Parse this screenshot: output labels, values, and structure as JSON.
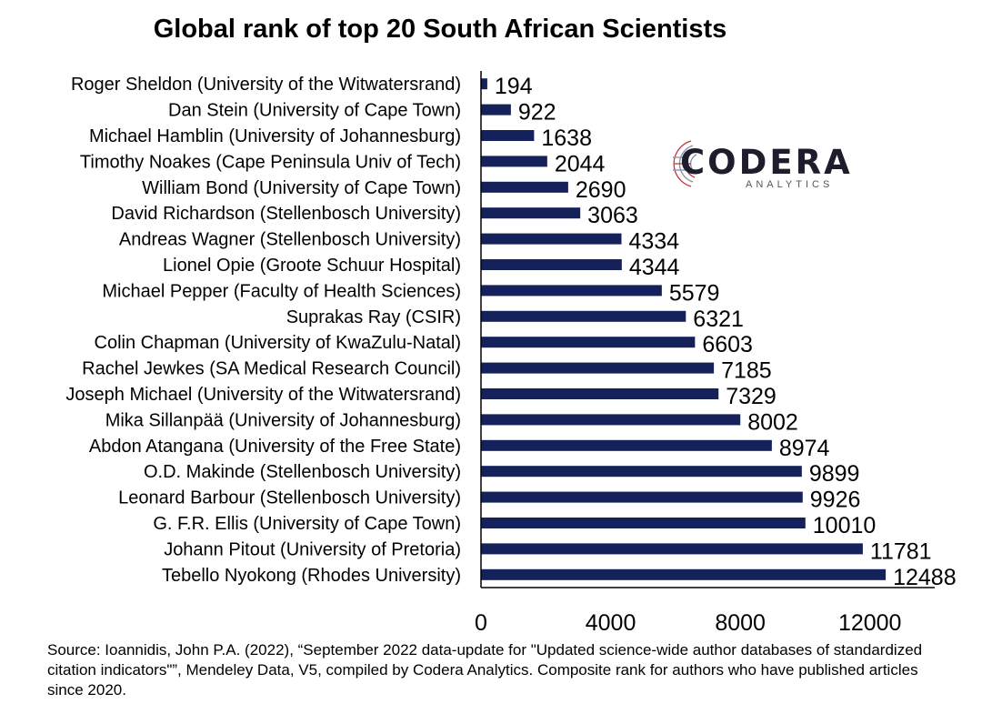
{
  "chart_data": {
    "type": "bar",
    "orientation": "horizontal",
    "title": "Global rank of top 20 South African Scientists",
    "categories": [
      "Roger Sheldon (University of the Witwatersrand)",
      "Dan Stein (University of Cape Town)",
      "Michael Hamblin (University of Johannesburg)",
      "Timothy Noakes (Cape Peninsula Univ of Tech)",
      "William Bond (University of Cape Town)",
      "David Richardson (Stellenbosch University)",
      "Andreas Wagner (Stellenbosch University)",
      "Lionel Opie (Groote Schuur Hospital)",
      "Michael Pepper (Faculty of Health Sciences)",
      "Suprakas Ray (CSIR)",
      "Colin Chapman (University of KwaZulu-Natal)",
      "Rachel Jewkes (SA Medical Research Council)",
      "Joseph Michael (University of the Witwatersrand)",
      "Mika Sillanpää (University of Johannesburg)",
      "Abdon Atangana (University of the Free State)",
      "O.D. Makinde (Stellenbosch University)",
      "Leonard Barbour (Stellenbosch University)",
      "G. F.R. Ellis (University of Cape Town)",
      "Johann Pitout (University of Pretoria)",
      "Tebello Nyokong (Rhodes University)"
    ],
    "values": [
      194,
      922,
      1638,
      2044,
      2690,
      3063,
      4334,
      4344,
      5579,
      6321,
      6603,
      7185,
      7329,
      8002,
      8974,
      9899,
      9926,
      10010,
      11781,
      12488
    ],
    "xticks": [
      "0",
      "4000",
      "8000",
      "12000"
    ],
    "xlim": [
      0,
      14000
    ],
    "bar_color": "#14215a",
    "data_labels": true,
    "grid": false
  },
  "source_note": "Source: Ioannidis, John P.A. (2022), “September 2022 data-update for \"Updated science-wide author databases of standardized citation indicators\"”, Mendeley Data, V5, compiled by Codera Analytics. Composite rank for authors who have published articles since 2020.",
  "logo": {
    "word": "CODERA",
    "sub": "ANALYTICS",
    "accent": "#c8323c"
  }
}
